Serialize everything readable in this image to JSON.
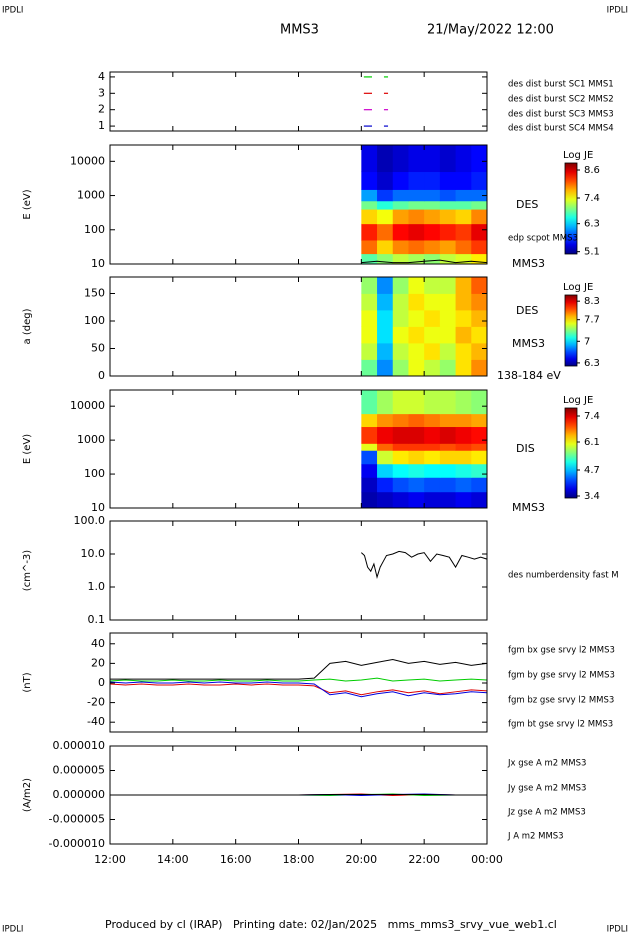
{
  "page": {
    "corner_label": "IPDLI",
    "spacecraft": "MMS3",
    "date": "21/May/2022 12:00",
    "footer": "Produced by cl (IRAP)   Printing date: 02/Jan/2025   mms_mms3_srvy_vue_web1.cl"
  },
  "chart_data": [
    {
      "type": "timeline",
      "xlim": [
        12,
        24
      ],
      "ylim": [
        0.7,
        4.3
      ],
      "yticks": [
        1,
        2,
        3,
        4
      ],
      "series": [
        {
          "name": "des dist burst SC1 MMS1",
          "color": "#0000cc",
          "row": 1,
          "intervals": [
            [
              20.08,
              20.34
            ],
            [
              20.72,
              20.85
            ]
          ]
        },
        {
          "name": "des dist burst SC2 MMS2",
          "color": "#cc00cc",
          "row": 2,
          "intervals": [
            [
              20.08,
              20.34
            ],
            [
              20.72,
              20.85
            ]
          ]
        },
        {
          "name": "des dist burst SC3 MMS3",
          "color": "#dd0000",
          "row": 3,
          "intervals": [
            [
              20.08,
              20.34
            ],
            [
              20.72,
              20.85
            ]
          ]
        },
        {
          "name": "des dist burst SC4 MMS4",
          "color": "#00cc00",
          "row": 4,
          "intervals": [
            [
              20.08,
              20.34
            ],
            [
              20.72,
              20.85
            ]
          ]
        }
      ]
    },
    {
      "type": "spectrogram",
      "ylabel": "E (eV)",
      "log_y": true,
      "xlim": [
        12,
        24
      ],
      "ylim": [
        10,
        30000
      ],
      "yticks": [
        10,
        100,
        1000,
        10000
      ],
      "instrument": "DES",
      "spacecraft": "MMS3",
      "colorbar_title": "Log JE",
      "clim": [
        5.0,
        8.9
      ],
      "cticks": [
        8.6,
        7.4,
        6.3,
        5.1
      ],
      "bins_x": [
        20,
        20.5,
        21,
        21.5,
        22,
        22.5,
        23,
        23.5,
        24
      ],
      "bins_y": [
        10,
        20,
        50,
        150,
        400,
        700,
        1500,
        5000,
        30000
      ],
      "z": [
        [
          6.8,
          7.0,
          7.2,
          7.1,
          7.0,
          7.2,
          7.3,
          7.5
        ],
        [
          8.0,
          7.6,
          7.9,
          8.0,
          7.9,
          7.8,
          8.0,
          8.2
        ],
        [
          8.3,
          8.0,
          8.4,
          8.5,
          8.4,
          8.3,
          8.2,
          8.5
        ],
        [
          7.6,
          7.4,
          7.8,
          7.9,
          7.8,
          7.7,
          7.6,
          7.9
        ],
        [
          6.9,
          6.6,
          6.8,
          6.9,
          6.9,
          6.8,
          6.8,
          6.9
        ],
        [
          6.1,
          5.7,
          5.9,
          5.9,
          5.9,
          5.8,
          5.9,
          5.9
        ],
        [
          5.5,
          5.3,
          5.5,
          5.6,
          5.6,
          5.5,
          5.5,
          5.6
        ],
        [
          5.4,
          5.2,
          5.3,
          5.4,
          5.4,
          5.3,
          5.4,
          5.5
        ]
      ],
      "x": [
        20,
        20.5,
        21,
        21.5,
        22,
        22.5,
        23,
        23.5,
        24
      ],
      "series": [
        {
          "name": "edp scpot MMS3",
          "color": "#000000",
          "values": [
            11,
            12,
            11,
            11,
            12,
            13,
            11,
            12,
            11
          ]
        }
      ]
    },
    {
      "type": "spectrogram",
      "ylabel": "a (deg)",
      "xlim": [
        12,
        24
      ],
      "ylim": [
        0,
        180
      ],
      "yticks": [
        0,
        50,
        100,
        150
      ],
      "instrument": "DES",
      "spacecraft": "MMS3",
      "energy_range": "138-184 eV",
      "colorbar_title": "Log JE",
      "clim": [
        6.2,
        8.5
      ],
      "cticks": [
        8.3,
        7.7,
        7.0,
        6.3
      ],
      "bins_x": [
        20,
        20.5,
        21,
        21.5,
        22,
        22.5,
        23,
        23.5,
        24
      ],
      "bins_y": [
        0,
        30,
        60,
        90,
        120,
        150,
        180
      ],
      "z": [
        [
          7.3,
          6.8,
          7.4,
          7.6,
          7.5,
          7.4,
          7.7,
          7.9
        ],
        [
          7.5,
          6.9,
          7.5,
          7.6,
          7.7,
          7.5,
          7.7,
          7.8
        ],
        [
          7.6,
          7.0,
          7.6,
          7.7,
          7.6,
          7.6,
          7.8,
          7.7
        ],
        [
          7.6,
          7.0,
          7.5,
          7.6,
          7.7,
          7.6,
          7.7,
          7.8
        ],
        [
          7.5,
          6.9,
          7.5,
          7.7,
          7.6,
          7.6,
          7.8,
          7.9
        ],
        [
          7.4,
          6.8,
          7.4,
          7.6,
          7.5,
          7.5,
          7.8,
          8.0
        ]
      ]
    },
    {
      "type": "spectrogram",
      "ylabel": "E (eV)",
      "log_y": true,
      "xlim": [
        12,
        24
      ],
      "ylim": [
        10,
        30000
      ],
      "yticks": [
        10,
        100,
        1000,
        10000
      ],
      "instrument": "DIS",
      "spacecraft": "MMS3",
      "colorbar_title": "Log JE",
      "clim": [
        3.3,
        7.8
      ],
      "cticks": [
        7.4,
        6.1,
        4.7,
        3.4
      ],
      "bins_x": [
        20,
        20.5,
        21,
        21.5,
        22,
        22.5,
        23,
        23.5,
        24
      ],
      "bins_y": [
        10,
        30,
        80,
        200,
        500,
        800,
        2500,
        6000,
        30000
      ],
      "z": [
        [
          3.5,
          3.6,
          3.7,
          3.8,
          3.7,
          3.7,
          3.8,
          3.7
        ],
        [
          3.6,
          4.0,
          4.2,
          4.3,
          4.2,
          4.2,
          4.3,
          4.2
        ],
        [
          3.8,
          4.8,
          5.0,
          5.1,
          5.0,
          5.0,
          5.1,
          5.2
        ],
        [
          4.2,
          5.9,
          6.2,
          6.3,
          6.2,
          6.3,
          6.3,
          6.2
        ],
        [
          6.0,
          6.8,
          7.0,
          7.0,
          7.0,
          6.9,
          7.0,
          6.9
        ],
        [
          7.0,
          7.3,
          7.4,
          7.4,
          7.3,
          7.4,
          7.3,
          7.2
        ],
        [
          6.3,
          6.6,
          6.7,
          6.8,
          6.7,
          6.6,
          6.6,
          6.5
        ],
        [
          5.4,
          5.7,
          5.9,
          5.9,
          5.8,
          5.8,
          5.7,
          5.6
        ]
      ]
    },
    {
      "type": "line",
      "ylabel": "(cm^-3)",
      "log_y": true,
      "xlim": [
        12,
        24
      ],
      "ylim": [
        0.1,
        100
      ],
      "yticks": [
        {
          "value": 100,
          "label": "100.0"
        },
        {
          "value": 10,
          "label": "10.0"
        },
        {
          "value": 1,
          "label": "1.0"
        },
        {
          "value": 0.1,
          "label": "0.1"
        }
      ],
      "x": [
        20,
        20.1,
        20.2,
        20.3,
        20.4,
        20.5,
        20.6,
        20.7,
        20.8,
        21,
        21.2,
        21.4,
        21.6,
        21.8,
        22,
        22.2,
        22.4,
        22.6,
        22.8,
        23,
        23.2,
        23.4,
        23.6,
        23.8,
        24
      ],
      "series": [
        {
          "name": "des numberdensity fast M",
          "color": "#000000",
          "values": [
            11,
            9,
            4,
            3,
            5,
            2,
            4,
            6,
            9,
            10,
            12,
            11,
            8,
            10,
            11,
            6,
            10,
            9,
            8,
            4,
            9,
            8,
            7,
            8,
            7
          ]
        }
      ]
    },
    {
      "type": "line",
      "ylabel": "(nT)",
      "xlim": [
        12,
        24
      ],
      "ylim": [
        -50,
        51
      ],
      "yticks": [
        40,
        20,
        0,
        -20,
        -40
      ],
      "x": [
        12,
        12.5,
        13,
        13.5,
        14,
        14.5,
        15,
        15.5,
        16,
        16.5,
        17,
        17.5,
        18,
        18.5,
        19,
        19.5,
        20,
        20.5,
        21,
        21.5,
        22,
        22.5,
        23,
        23.5,
        24
      ],
      "series": [
        {
          "name": "fgm bx gse srvy l2 MMS3",
          "color": "#dd0000",
          "values": [
            -1,
            -2,
            -1,
            -2,
            -2,
            -1,
            -2,
            -2,
            -1,
            -2,
            -1,
            -2,
            -2,
            -3,
            -10,
            -8,
            -12,
            -9,
            -7,
            -10,
            -8,
            -11,
            -9,
            -7,
            -8
          ]
        },
        {
          "name": "fgm by gse srvy l2 MMS3",
          "color": "#00cc00",
          "values": [
            2,
            3,
            2,
            2,
            3,
            2,
            2,
            3,
            2,
            2,
            3,
            2,
            2,
            3,
            4,
            2,
            3,
            5,
            2,
            3,
            4,
            2,
            3,
            4,
            3
          ]
        },
        {
          "name": "fgm bz gse srvy l2 MMS3",
          "color": "#0000dd",
          "values": [
            1,
            0,
            1,
            0,
            0,
            1,
            0,
            1,
            0,
            0,
            1,
            0,
            0,
            -1,
            -12,
            -10,
            -14,
            -11,
            -9,
            -13,
            -10,
            -12,
            -11,
            -9,
            -10
          ]
        },
        {
          "name": "fgm bt gse srvy l2 MMS3",
          "color": "#000000",
          "values": [
            4,
            4,
            4,
            4,
            4,
            4,
            4,
            4,
            4,
            4,
            4,
            4,
            4,
            5,
            20,
            22,
            18,
            21,
            24,
            20,
            22,
            19,
            21,
            18,
            20
          ]
        }
      ]
    },
    {
      "type": "line",
      "ylabel": "(A/m2)",
      "xlim": [
        12,
        24
      ],
      "ylim": [
        -1e-05,
        1e-05
      ],
      "yticks": [
        {
          "value": 1e-05,
          "label": "0.000010"
        },
        {
          "value": 5e-06,
          "label": "0.000005"
        },
        {
          "value": 0,
          "label": "0.000000"
        },
        {
          "value": -5e-06,
          "label": "-0.000005"
        },
        {
          "value": -1e-05,
          "label": "-0.000010"
        }
      ],
      "xticks": [
        {
          "value": 12,
          "label": "12:00"
        },
        {
          "value": 14,
          "label": "14:00"
        },
        {
          "value": 16,
          "label": "16:00"
        },
        {
          "value": 18,
          "label": "18:00"
        },
        {
          "value": 20,
          "label": "20:00"
        },
        {
          "value": 22,
          "label": "22:00"
        },
        {
          "value": 24,
          "label": "00:00"
        }
      ],
      "x": [
        12,
        13,
        14,
        15,
        16,
        17,
        18,
        19,
        20,
        21,
        22,
        23,
        24
      ],
      "series": [
        {
          "name": "Jx gse A m2 MMS3",
          "color": "#dd0000",
          "values": [
            0,
            0,
            0,
            0,
            0,
            0,
            0,
            1e-07,
            2e-07,
            -1e-07,
            1e-07,
            0,
            0
          ]
        },
        {
          "name": "Jy gse A m2 MMS3",
          "color": "#00cc00",
          "values": [
            0,
            0,
            0,
            0,
            0,
            0,
            0,
            -1e-07,
            1e-07,
            2e-07,
            -1e-07,
            0,
            0
          ]
        },
        {
          "name": "Jz gse A m2 MMS3",
          "color": "#0000dd",
          "values": [
            0,
            0,
            0,
            0,
            0,
            0,
            0,
            1e-07,
            -1e-07,
            1e-07,
            2e-07,
            0,
            0
          ]
        },
        {
          "name": "J A m2 MMS3",
          "color": "#000000",
          "values": [
            0,
            0,
            0,
            0,
            0,
            0,
            0,
            1e-07,
            1e-07,
            1e-07,
            1e-07,
            0,
            0
          ]
        }
      ]
    }
  ]
}
